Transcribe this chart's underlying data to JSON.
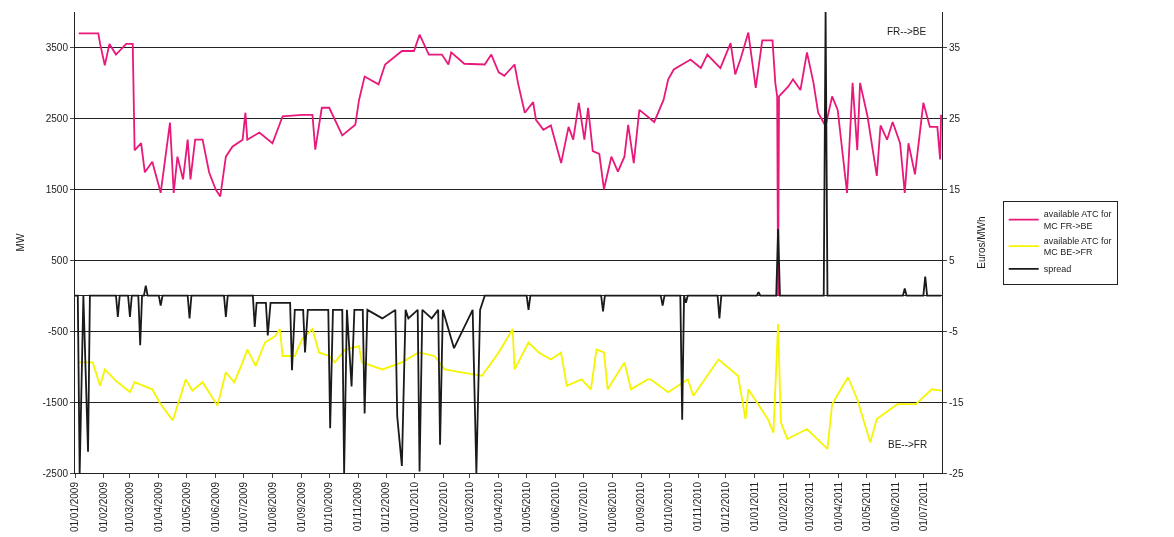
{
  "chart_data": {
    "type": "line",
    "ylabel": "MW",
    "y2label": "Euros/MWh",
    "annotations": [
      "FR-->BE",
      "BE-->FR"
    ],
    "series": [
      {
        "name": "available ATC for MC FR->BE",
        "color": "#e8197a",
        "x": [
          "2009-01-05",
          "2009-01-26",
          "2009-01-28",
          "2009-02-02",
          "2009-02-07",
          "2009-02-14",
          "2009-02-25",
          "2009-03-04",
          "2009-03-06",
          "2009-03-13",
          "2009-03-17",
          "2009-03-25",
          "2009-04-03",
          "2009-04-13",
          "2009-04-17",
          "2009-04-21",
          "2009-04-27",
          "2009-05-02",
          "2009-05-05",
          "2009-05-10",
          "2009-05-18",
          "2009-05-25",
          "2009-06-01",
          "2009-06-06",
          "2009-06-12",
          "2009-06-19",
          "2009-06-30",
          "2009-07-03",
          "2009-07-05",
          "2009-07-18",
          "2009-08-01",
          "2009-08-12",
          "2009-09-02",
          "2009-09-13",
          "2009-09-16",
          "2009-09-23",
          "2009-10-01",
          "2009-10-15",
          "2009-10-29",
          "2009-11-02",
          "2009-11-08",
          "2009-11-23",
          "2009-11-30",
          "2009-12-18",
          "2009-12-31",
          "2010-01-06",
          "2010-01-16",
          "2010-01-30",
          "2010-02-06",
          "2010-02-09",
          "2010-02-23",
          "2010-03-17",
          "2010-03-24",
          "2010-04-01",
          "2010-04-07",
          "2010-04-18",
          "2010-04-22",
          "2010-04-29",
          "2010-05-08",
          "2010-05-11",
          "2010-05-19",
          "2010-05-27",
          "2010-06-07",
          "2010-06-15",
          "2010-06-20",
          "2010-06-26",
          "2010-07-02",
          "2010-07-06",
          "2010-07-11",
          "2010-07-18",
          "2010-07-23",
          "2010-07-31",
          "2010-08-07",
          "2010-08-14",
          "2010-08-18",
          "2010-08-24",
          "2010-08-30",
          "2010-09-15",
          "2010-09-25",
          "2010-09-30",
          "2010-10-06",
          "2010-10-24",
          "2010-11-04",
          "2010-11-11",
          "2010-11-25",
          "2010-12-06",
          "2010-12-11",
          "2010-12-17",
          "2010-12-25",
          "2011-01-02",
          "2011-01-09",
          "2011-01-20",
          "2011-01-23",
          "2011-01-25",
          "2011-01-26",
          "2011-01-27",
          "2011-02-06",
          "2011-02-11",
          "2011-02-19",
          "2011-02-26",
          "2011-03-05",
          "2011-03-10",
          "2011-03-18",
          "2011-03-25",
          "2011-03-31",
          "2011-04-06",
          "2011-04-10",
          "2011-04-16",
          "2011-04-21",
          "2011-04-24",
          "2011-05-02",
          "2011-05-12",
          "2011-05-16",
          "2011-05-23",
          "2011-05-29",
          "2011-06-06",
          "2011-06-11",
          "2011-06-15",
          "2011-06-22",
          "2011-07-01",
          "2011-07-08",
          "2011-07-16",
          "2011-07-19",
          "2011-07-20"
        ],
        "values": [
          3700,
          3700,
          3550,
          3250,
          3550,
          3400,
          3550,
          3550,
          2050,
          2150,
          1740,
          1890,
          1450,
          2440,
          1450,
          1960,
          1640,
          2200,
          1640,
          2200,
          2200,
          1740,
          1500,
          1400,
          1960,
          2100,
          2200,
          2580,
          2200,
          2300,
          2150,
          2530,
          2550,
          2550,
          2060,
          2650,
          2650,
          2260,
          2410,
          2760,
          3090,
          2980,
          3260,
          3450,
          3450,
          3680,
          3400,
          3400,
          3260,
          3430,
          3270,
          3260,
          3400,
          3150,
          3100,
          3260,
          2980,
          2580,
          2730,
          2480,
          2340,
          2400,
          1870,
          2380,
          2200,
          2720,
          2200,
          2650,
          2040,
          2000,
          1500,
          1960,
          1750,
          1960,
          2410,
          1870,
          2620,
          2450,
          2760,
          3050,
          3190,
          3330,
          3210,
          3400,
          3210,
          3560,
          3120,
          3350,
          3710,
          2930,
          3600,
          3600,
          3000,
          2810,
          0,
          2810,
          2950,
          3050,
          2900,
          3430,
          3000,
          2580,
          2390,
          2810,
          2620,
          1920,
          1450,
          3000,
          2050,
          3000,
          2530,
          1690,
          2400,
          2200,
          2450,
          2150,
          1450,
          2150,
          1710,
          2720,
          2380,
          2380,
          1920,
          2550
        ]
      },
      {
        "name": "available ATC for MC BE->FR",
        "color": "#f5f500",
        "x": [
          "2009-01-05",
          "2009-01-20",
          "2009-01-28",
          "2009-02-02",
          "2009-02-14",
          "2009-03-01",
          "2009-03-06",
          "2009-03-25",
          "2009-04-02",
          "2009-04-16",
          "2009-04-30",
          "2009-05-07",
          "2009-05-18",
          "2009-06-03",
          "2009-06-12",
          "2009-06-21",
          "2009-06-30",
          "2009-07-05",
          "2009-07-14",
          "2009-07-24",
          "2009-08-04",
          "2009-08-09",
          "2009-08-12",
          "2009-08-25",
          "2009-09-02",
          "2009-09-13",
          "2009-09-20",
          "2009-10-01",
          "2009-10-07",
          "2009-10-18",
          "2009-11-02",
          "2009-11-05",
          "2009-11-27",
          "2009-12-18",
          "2010-01-05",
          "2010-01-22",
          "2010-02-02",
          "2010-02-20",
          "2010-03-14",
          "2010-04-01",
          "2010-04-16",
          "2010-04-18",
          "2010-05-03",
          "2010-05-14",
          "2010-05-27",
          "2010-06-07",
          "2010-06-13",
          "2010-06-29",
          "2010-07-09",
          "2010-07-15",
          "2010-07-23",
          "2010-07-27",
          "2010-08-14",
          "2010-08-21",
          "2010-09-08",
          "2010-09-11",
          "2010-09-30",
          "2010-10-21",
          "2010-10-27",
          "2010-11-23",
          "2010-12-14",
          "2010-12-22",
          "2010-12-25",
          "2011-01-15",
          "2011-01-21",
          "2011-01-26",
          "2011-01-29",
          "2011-02-05",
          "2011-02-26",
          "2011-03-20",
          "2011-03-25",
          "2011-04-11",
          "2011-04-21",
          "2011-05-05",
          "2011-05-12",
          "2011-06-03",
          "2011-06-23",
          "2011-07-10",
          "2011-07-20"
        ],
        "values": [
          -940,
          -940,
          -1270,
          -1040,
          -1200,
          -1360,
          -1220,
          -1320,
          -1510,
          -1760,
          -1180,
          -1340,
          -1220,
          -1550,
          -1080,
          -1220,
          -940,
          -760,
          -990,
          -660,
          -570,
          -470,
          -850,
          -850,
          -610,
          -470,
          -800,
          -850,
          -940,
          -760,
          -710,
          -940,
          -1040,
          -940,
          -800,
          -850,
          -1040,
          -1080,
          -1130,
          -800,
          -470,
          -1040,
          -660,
          -800,
          -900,
          -800,
          -1270,
          -1180,
          -1320,
          -760,
          -800,
          -1320,
          -940,
          -1320,
          -1180,
          -1180,
          -1360,
          -1180,
          -1410,
          -900,
          -1130,
          -1740,
          -1320,
          -1740,
          -1930,
          -400,
          -1790,
          -2020,
          -1880,
          -2160,
          -1530,
          -1150,
          -1460,
          -2070,
          -1740,
          -1530,
          -1530,
          -1320,
          -1340
        ]
      },
      {
        "name": "spread",
        "color": "#1a1a1a",
        "axis": "y2",
        "x": [
          "2009-01-01",
          "2009-01-04",
          "2009-01-06",
          "2009-01-10",
          "2009-01-15",
          "2009-01-17",
          "2009-02-14",
          "2009-02-16",
          "2009-02-18",
          "2009-02-27",
          "2009-03-01",
          "2009-03-03",
          "2009-03-10",
          "2009-03-12",
          "2009-03-14",
          "2009-03-16",
          "2009-03-18",
          "2009-03-20",
          "2009-04-01",
          "2009-04-03",
          "2009-04-05",
          "2009-05-02",
          "2009-05-04",
          "2009-05-06",
          "2009-06-10",
          "2009-06-12",
          "2009-06-14",
          "2009-07-11",
          "2009-07-13",
          "2009-07-15",
          "2009-07-25",
          "2009-07-27",
          "2009-07-30",
          "2009-08-20",
          "2009-08-22",
          "2009-08-25",
          "2009-09-03",
          "2009-09-05",
          "2009-09-08",
          "2009-09-30",
          "2009-10-02",
          "2009-10-05",
          "2009-10-15",
          "2009-10-17",
          "2009-10-20",
          "2009-10-25",
          "2009-10-28",
          "2009-11-06",
          "2009-11-08",
          "2009-11-11",
          "2009-11-27",
          "2009-12-11",
          "2009-12-13",
          "2009-12-18",
          "2009-12-22",
          "2009-12-25",
          "2010-01-04",
          "2010-01-06",
          "2010-01-09",
          "2010-01-19",
          "2010-01-26",
          "2010-01-28",
          "2010-01-31",
          "2010-02-12",
          "2010-03-04",
          "2010-03-08",
          "2010-03-12",
          "2010-03-17",
          "2010-05-01",
          "2010-05-03",
          "2010-05-05",
          "2010-07-20",
          "2010-07-22",
          "2010-07-24",
          "2010-09-22",
          "2010-09-24",
          "2010-09-26",
          "2010-10-13",
          "2010-10-15",
          "2010-10-17",
          "2010-10-19",
          "2010-10-21",
          "2010-11-22",
          "2010-11-24",
          "2010-11-26",
          "2011-01-03",
          "2011-01-05",
          "2011-01-07",
          "2011-01-24",
          "2011-01-26",
          "2011-01-28",
          "2011-03-16",
          "2011-03-18",
          "2011-03-20",
          "2011-06-09",
          "2011-06-11",
          "2011-06-13",
          "2011-07-01",
          "2011-07-03",
          "2011-07-05",
          "2011-07-20"
        ],
        "values": [
          0,
          0,
          -25,
          0,
          -22,
          0,
          0,
          -3,
          0,
          0,
          -3,
          0,
          0,
          -7,
          0,
          0,
          1.4,
          0,
          0,
          -1.4,
          0,
          0,
          -3.2,
          0,
          0,
          -3,
          0,
          0,
          -4.4,
          -1,
          -1,
          -5.6,
          -1,
          -1,
          -10.5,
          -2,
          -2,
          -8,
          -2,
          -2,
          -18.7,
          -2,
          -2,
          -25,
          -2,
          -12.8,
          -2,
          -2,
          -16.6,
          -2,
          -3.2,
          -2,
          -17,
          -24,
          -2,
          -3.2,
          -2,
          -24.8,
          -2,
          -3.2,
          -2,
          -21,
          -2,
          -7.4,
          -2,
          -25,
          -2,
          0,
          0,
          -2,
          0,
          0,
          -2.2,
          0,
          0,
          -1.4,
          0,
          0,
          -17.5,
          0,
          -1,
          0,
          0,
          -3.2,
          0,
          0,
          0.5,
          0,
          0,
          9.4,
          0,
          0,
          40,
          0,
          0,
          1,
          0,
          0,
          2.7,
          0,
          0
        ]
      }
    ],
    "xlim": [
      "2009-01-01",
      "2011-07-21"
    ],
    "xticks": [
      {
        "value": "2009-01-01",
        "label": "01/01/2009"
      },
      {
        "value": "2009-02-01",
        "label": "01/02/2009"
      },
      {
        "value": "2009-03-01",
        "label": "01/03/2009"
      },
      {
        "value": "2009-04-01",
        "label": "01/04/2009"
      },
      {
        "value": "2009-05-01",
        "label": "01/05/2009"
      },
      {
        "value": "2009-06-01",
        "label": "01/06/2009"
      },
      {
        "value": "2009-07-01",
        "label": "01/07/2009"
      },
      {
        "value": "2009-08-01",
        "label": "01/08/2009"
      },
      {
        "value": "2009-09-01",
        "label": "01/09/2009"
      },
      {
        "value": "2009-10-01",
        "label": "01/10/2009"
      },
      {
        "value": "2009-11-01",
        "label": "01/11/2009"
      },
      {
        "value": "2009-12-01",
        "label": "01/12/2009"
      },
      {
        "value": "2010-01-01",
        "label": "01/01/2010"
      },
      {
        "value": "2010-02-01",
        "label": "01/02/2010"
      },
      {
        "value": "2010-03-01",
        "label": "01/03/2010"
      },
      {
        "value": "2010-04-01",
        "label": "01/04/2010"
      },
      {
        "value": "2010-05-01",
        "label": "01/05/2010"
      },
      {
        "value": "2010-06-01",
        "label": "01/06/2010"
      },
      {
        "value": "2010-07-01",
        "label": "01/07/2010"
      },
      {
        "value": "2010-08-01",
        "label": "01/08/2010"
      },
      {
        "value": "2010-09-01",
        "label": "01/09/2010"
      },
      {
        "value": "2010-10-01",
        "label": "01/10/2010"
      },
      {
        "value": "2010-11-01",
        "label": "01/11/2010"
      },
      {
        "value": "2010-12-01",
        "label": "01/12/2010"
      },
      {
        "value": "2011-01-01",
        "label": "01/01/2011"
      },
      {
        "value": "2011-02-01",
        "label": "01/02/2011"
      },
      {
        "value": "2011-03-01",
        "label": "01/03/2011"
      },
      {
        "value": "2011-04-01",
        "label": "01/04/2011"
      },
      {
        "value": "2011-05-01",
        "label": "01/05/2011"
      },
      {
        "value": "2011-06-01",
        "label": "01/06/2011"
      },
      {
        "value": "2011-07-01",
        "label": "01/07/2011"
      }
    ],
    "ylim": [
      -2500,
      4000
    ],
    "yticks": [
      -2500,
      -1500,
      -500,
      500,
      1500,
      2500,
      3500
    ],
    "y2lim": [
      -25,
      40
    ],
    "y2ticks": [
      -25,
      -15,
      -5,
      5,
      15,
      25,
      35
    ],
    "grid": "y",
    "legend": "right",
    "marker": "none",
    "line_style": "solid"
  }
}
